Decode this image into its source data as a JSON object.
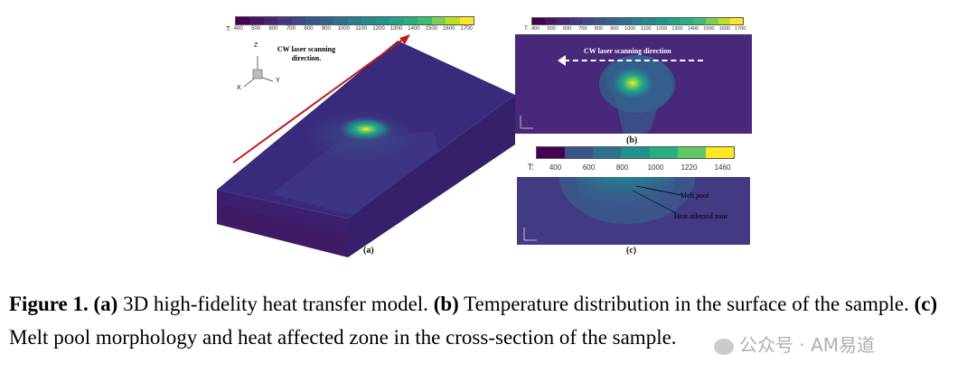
{
  "figure_a": {
    "colorbar_prefix": "T:",
    "colorbar_ticks": [
      "400",
      "500",
      "600",
      "700",
      "800",
      "900",
      "1000",
      "1100",
      "1200",
      "1300",
      "1400",
      "1500",
      "1600",
      "1700"
    ],
    "annotation": "CW laser scanning direction.",
    "axis_labels": {
      "z": "Z",
      "x": "X",
      "y": "Y"
    },
    "label": "(a)"
  },
  "figure_b": {
    "colorbar_prefix": "T:",
    "colorbar_ticks": [
      "400",
      "500",
      "600",
      "700",
      "800",
      "900",
      "1000",
      "1100",
      "1200",
      "1300",
      "1400",
      "1500",
      "1600",
      "1700"
    ],
    "annotation": "CW laser scanning direction",
    "label": "(b)"
  },
  "figure_c": {
    "colorbar_prefix": "T:",
    "colorbar_ticks": [
      "400",
      "600",
      "800",
      "1000",
      "1220",
      "1460"
    ],
    "melt_pool_label": "Melt pool",
    "haz_label": "Heat affected zone",
    "label": "(c)"
  },
  "colormap": [
    "#440154",
    "#482475",
    "#414487",
    "#355f8d",
    "#2a788e",
    "#21918c",
    "#22a884",
    "#44bf70",
    "#7ad151",
    "#bddf26",
    "#fde725"
  ],
  "caption": {
    "fig_label": "Figure 1.",
    "a_tag": "(a)",
    "a_text": " 3D high-fidelity heat transfer model. ",
    "b_tag": "(b)",
    "b_text": " Temperature distribution in the surface of the sample. ",
    "c_tag": "(c)",
    "c_text": " Melt pool morphology and heat affected zone in the cross-section of the sample."
  },
  "watermark": "公众号 · AM易道"
}
